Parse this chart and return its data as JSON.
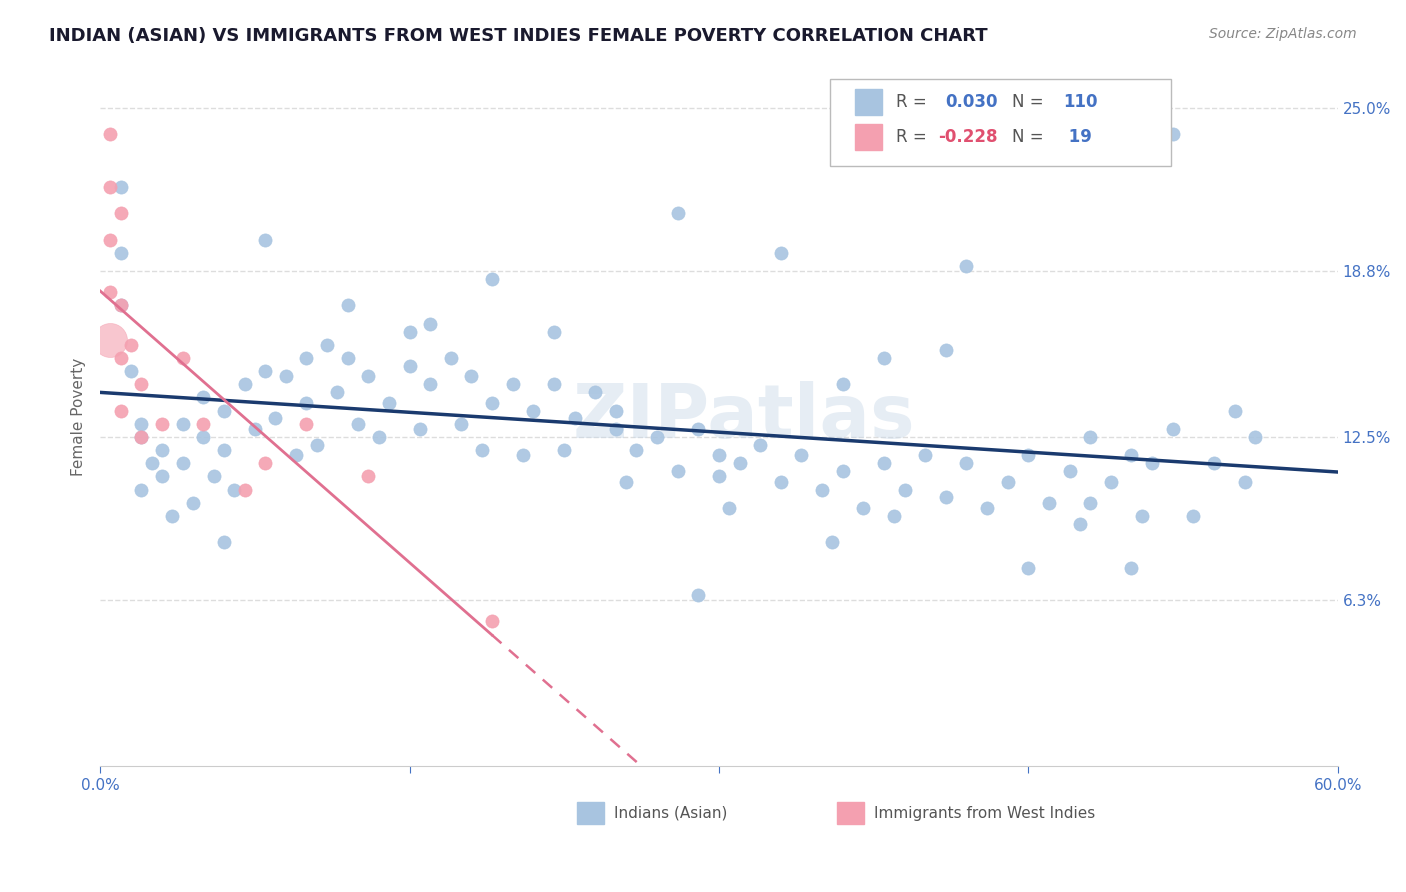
{
  "title": "INDIAN (ASIAN) VS IMMIGRANTS FROM WEST INDIES FEMALE POVERTY CORRELATION CHART",
  "source": "Source: ZipAtlas.com",
  "ylabel": "Female Poverty",
  "xlim": [
    0.0,
    0.6
  ],
  "ylim": [
    0.0,
    0.265
  ],
  "yticks": [
    0.063,
    0.125,
    0.188,
    0.25
  ],
  "ytick_labels": [
    "6.3%",
    "12.5%",
    "18.8%",
    "25.0%"
  ],
  "xticks": [
    0.0,
    0.15,
    0.3,
    0.45,
    0.6
  ],
  "xtick_labels": [
    "0.0%",
    "",
    "",
    "",
    "60.0%"
  ],
  "r_blue": 0.03,
  "n_blue": 110,
  "r_pink": -0.228,
  "n_pink": 19,
  "blue_color": "#a8c4e0",
  "pink_color": "#f4a0b0",
  "blue_line_color": "#1a3a6e",
  "pink_line_color": "#e07090",
  "title_color": "#1a1a2e",
  "axis_label_color": "#666666",
  "tick_color": "#4472c4",
  "watermark": "ZIPatlas",
  "background_color": "#ffffff",
  "grid_color": "#dddddd",
  "blue_scatter_x": [
    0.02,
    0.01,
    0.01,
    0.01,
    0.015,
    0.02,
    0.025,
    0.02,
    0.03,
    0.03,
    0.035,
    0.04,
    0.04,
    0.045,
    0.05,
    0.05,
    0.055,
    0.06,
    0.06,
    0.065,
    0.07,
    0.075,
    0.08,
    0.085,
    0.09,
    0.095,
    0.1,
    0.1,
    0.105,
    0.11,
    0.115,
    0.12,
    0.125,
    0.13,
    0.135,
    0.14,
    0.15,
    0.155,
    0.16,
    0.17,
    0.175,
    0.18,
    0.185,
    0.19,
    0.2,
    0.205,
    0.21,
    0.22,
    0.225,
    0.23,
    0.24,
    0.25,
    0.255,
    0.26,
    0.27,
    0.28,
    0.29,
    0.3,
    0.305,
    0.31,
    0.32,
    0.33,
    0.34,
    0.35,
    0.355,
    0.36,
    0.37,
    0.38,
    0.385,
    0.39,
    0.4,
    0.41,
    0.42,
    0.43,
    0.44,
    0.45,
    0.46,
    0.47,
    0.475,
    0.48,
    0.49,
    0.5,
    0.505,
    0.51,
    0.52,
    0.53,
    0.54,
    0.55,
    0.555,
    0.56,
    0.28,
    0.33,
    0.19,
    0.08,
    0.12,
    0.22,
    0.42,
    0.5,
    0.45,
    0.38,
    0.3,
    0.25,
    0.15,
    0.36,
    0.41,
    0.52,
    0.48,
    0.29,
    0.16,
    0.06
  ],
  "blue_scatter_y": [
    0.13,
    0.22,
    0.195,
    0.175,
    0.15,
    0.125,
    0.115,
    0.105,
    0.12,
    0.11,
    0.095,
    0.13,
    0.115,
    0.1,
    0.14,
    0.125,
    0.11,
    0.135,
    0.12,
    0.105,
    0.145,
    0.128,
    0.15,
    0.132,
    0.148,
    0.118,
    0.155,
    0.138,
    0.122,
    0.16,
    0.142,
    0.155,
    0.13,
    0.148,
    0.125,
    0.138,
    0.152,
    0.128,
    0.145,
    0.155,
    0.13,
    0.148,
    0.12,
    0.138,
    0.145,
    0.118,
    0.135,
    0.145,
    0.12,
    0.132,
    0.142,
    0.128,
    0.108,
    0.12,
    0.125,
    0.112,
    0.128,
    0.118,
    0.098,
    0.115,
    0.122,
    0.108,
    0.118,
    0.105,
    0.085,
    0.112,
    0.098,
    0.115,
    0.095,
    0.105,
    0.118,
    0.102,
    0.115,
    0.098,
    0.108,
    0.118,
    0.1,
    0.112,
    0.092,
    0.125,
    0.108,
    0.118,
    0.095,
    0.115,
    0.128,
    0.095,
    0.115,
    0.135,
    0.108,
    0.125,
    0.21,
    0.195,
    0.185,
    0.2,
    0.175,
    0.165,
    0.19,
    0.075,
    0.075,
    0.155,
    0.11,
    0.135,
    0.165,
    0.145,
    0.158,
    0.24,
    0.1,
    0.065,
    0.168,
    0.085
  ],
  "pink_scatter_x": [
    0.005,
    0.005,
    0.005,
    0.005,
    0.01,
    0.01,
    0.01,
    0.01,
    0.015,
    0.02,
    0.02,
    0.03,
    0.04,
    0.05,
    0.07,
    0.08,
    0.1,
    0.13,
    0.19
  ],
  "pink_scatter_y": [
    0.24,
    0.22,
    0.2,
    0.18,
    0.21,
    0.175,
    0.155,
    0.135,
    0.16,
    0.145,
    0.125,
    0.13,
    0.155,
    0.13,
    0.105,
    0.115,
    0.13,
    0.11,
    0.055
  ]
}
